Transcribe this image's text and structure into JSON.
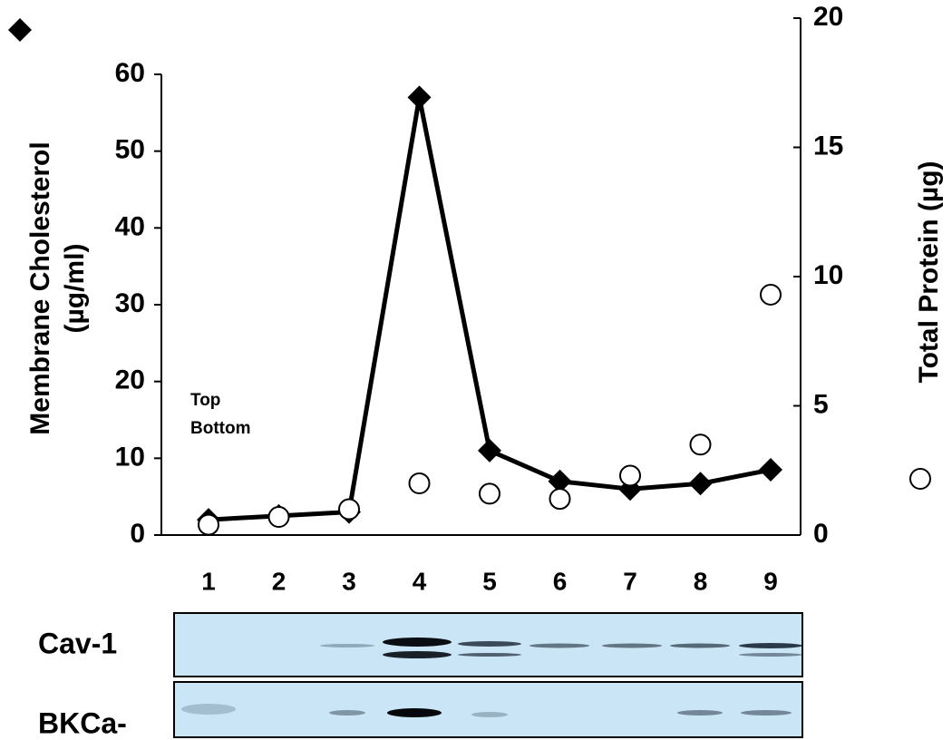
{
  "chart_data": {
    "type": "line",
    "categories": [
      "1",
      "2",
      "3",
      "4",
      "5",
      "6",
      "7",
      "8",
      "9"
    ],
    "series": [
      {
        "marker": "diamond",
        "color": "#000000",
        "line": true,
        "values": [
          2,
          2.5,
          3,
          57,
          11,
          7,
          6,
          6.7,
          8.5
        ]
      },
      {
        "marker": "circle",
        "color": "#ffffff",
        "line": false,
        "axis": "y2",
        "values": [
          0.4,
          0.7,
          1.0,
          2.0,
          1.6,
          1.4,
          2.3,
          3.5,
          9.3
        ]
      }
    ],
    "ylim": [
      0,
      60
    ],
    "yticks": [
      0,
      10,
      20,
      30,
      40,
      50,
      60
    ],
    "y2lim": [
      0,
      20
    ],
    "y2ticks": [
      0,
      5,
      10,
      15,
      20
    ],
    "y_label": [
      "Membrane Cholesterol",
      "(µg/ml)"
    ],
    "y2_label": "Total Protein (µg)",
    "annotations": [
      "Top",
      "Bottom"
    ],
    "blot_labels": [
      "Cav-1",
      "BKCa-"
    ]
  }
}
